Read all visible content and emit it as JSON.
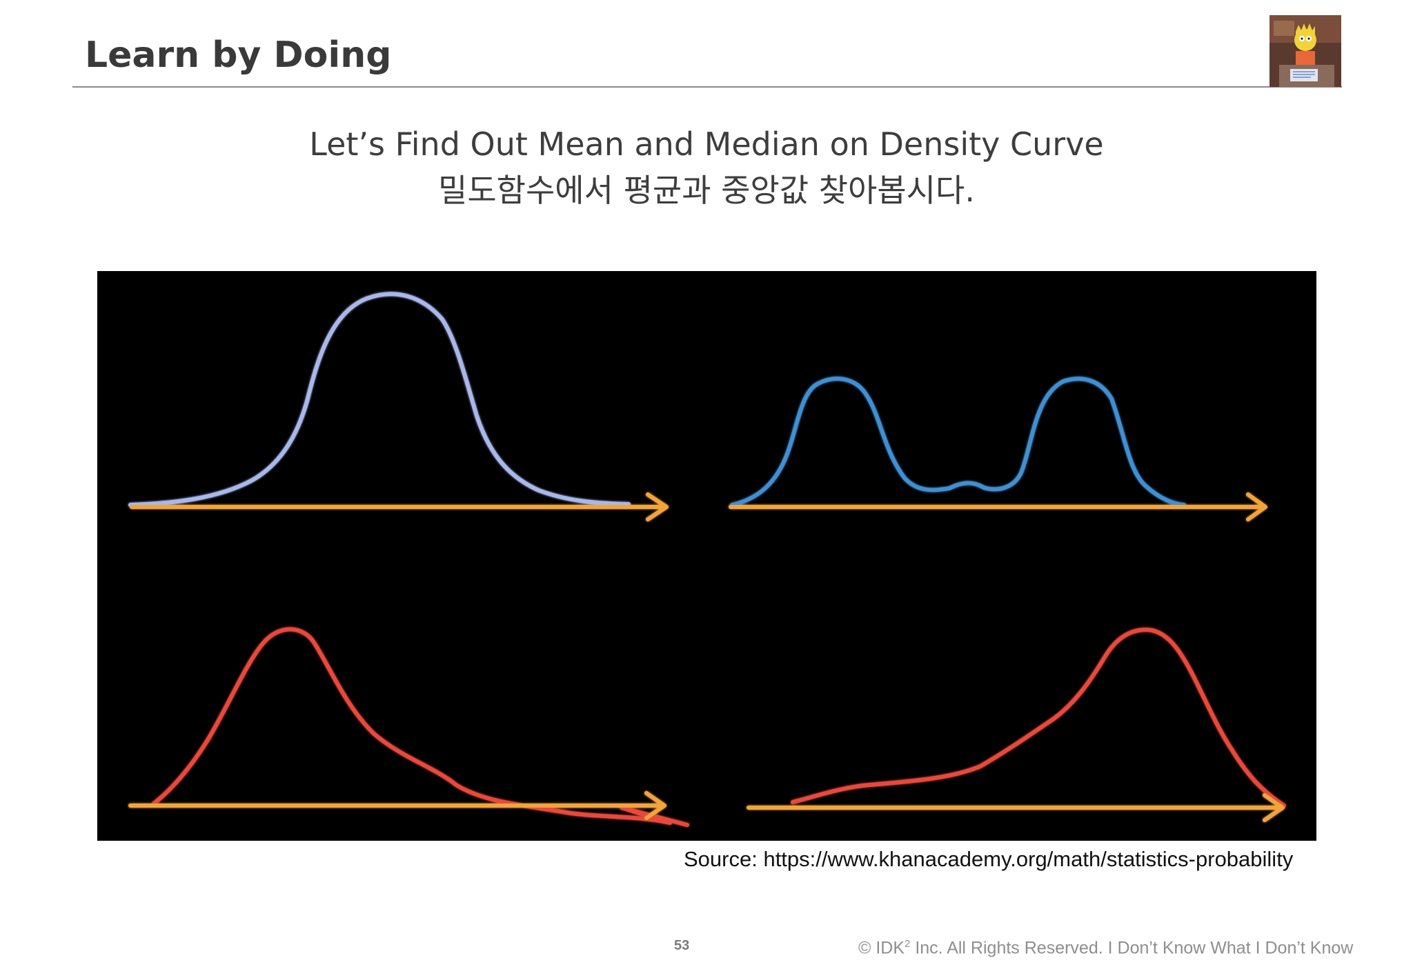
{
  "slide": {
    "title": "Learn by Doing",
    "subtitle_en": "Let’s Find Out Mean and Median on Density Curve",
    "subtitle_ko": "밀도함수에서 평균과 중앙값 찾아봅시다.",
    "source": "Source: https://www.khanacademy.org/math/statistics-probability",
    "page_number": "53",
    "copyright": {
      "prefix": "© IDK",
      "superscript": "2",
      "suffix": " Inc. All Rights Reserved.  I Don’t Know What I Don’t Know"
    }
  },
  "figure": {
    "background": "#000000",
    "axis_color": "#f2a43a",
    "curves": [
      {
        "shape": "symmetric-unimodal",
        "color": "#a9b8ea"
      },
      {
        "shape": "bimodal",
        "color": "#3f8fd2"
      },
      {
        "shape": "right-skewed",
        "color": "#e8483a"
      },
      {
        "shape": "left-skewed",
        "color": "#e8483a"
      }
    ]
  },
  "logo": {
    "icon": "cartoon-character-thumbnail-icon"
  }
}
